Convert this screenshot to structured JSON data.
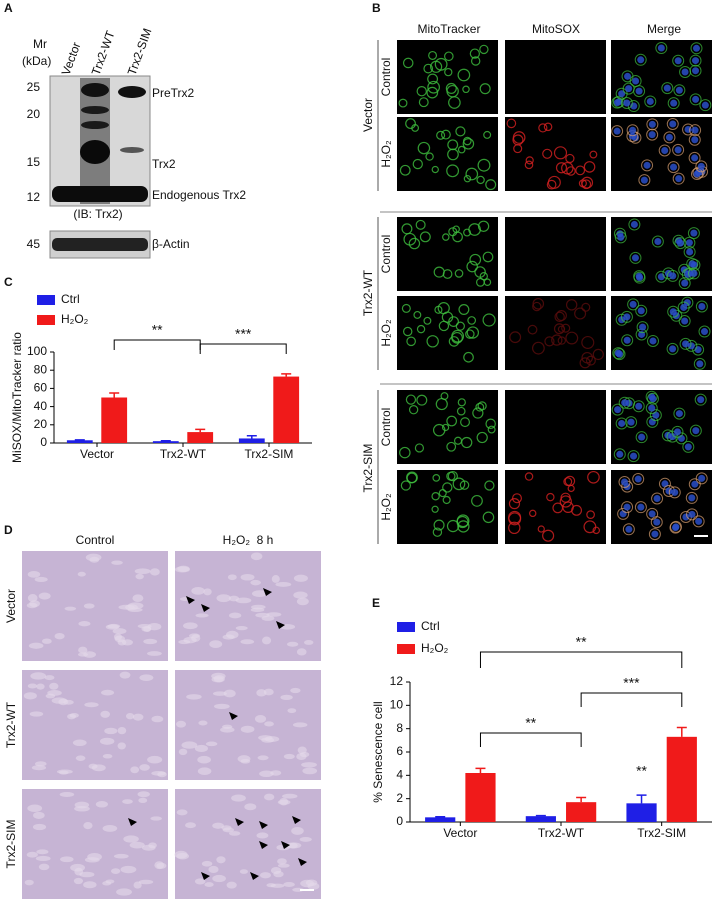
{
  "panel_a": {
    "label": "A",
    "mr": "Mr",
    "kda": "(kDa)",
    "lanes": [
      "Vector",
      "Trx2-WT",
      "Trx2-SIM"
    ],
    "markers": [
      25,
      20,
      15,
      12
    ],
    "bands": [
      "PreTrx2",
      "Trx2",
      "Endogenous Trx2"
    ],
    "ib": "(IB: Trx2)",
    "actin_marker": 45,
    "actin": "β-Actin"
  },
  "panel_b": {
    "label": "B",
    "columns": [
      "MitoTracker",
      "MitoSOX",
      "Merge"
    ],
    "groups": [
      "Vector",
      "Trx2-WT",
      "Trx2-SIM"
    ],
    "rows": [
      "Control",
      "H₂O₂"
    ]
  },
  "panel_d": {
    "label": "D",
    "columns": [
      "Control",
      "H₂O₂  8 h"
    ],
    "rows": [
      "Vector",
      "Trx2-WT",
      "Trx2-SIM"
    ]
  },
  "chart_data": [
    {
      "type": "bar",
      "panel": "C",
      "ylabel": "MiSOX/MitoTracker ratio",
      "categories": [
        "Vector",
        "Trx2-WT",
        "Trx2-SIM"
      ],
      "series": [
        {
          "name": "Ctrl",
          "color": "#1f1fe6",
          "values": [
            3,
            2,
            5
          ],
          "errors": [
            0.5,
            0.5,
            3
          ]
        },
        {
          "name": "H₂O₂",
          "color": "#f01a1a",
          "values": [
            50,
            12,
            73
          ],
          "errors": [
            5,
            3,
            3
          ]
        }
      ],
      "ylim": [
        0,
        100
      ],
      "yticks": [
        0,
        20,
        40,
        60,
        80,
        100
      ],
      "annotations": [
        "**",
        "***"
      ]
    },
    {
      "type": "bar",
      "panel": "E",
      "ylabel": "% Senescence cell",
      "categories": [
        "Vector",
        "Trx2-WT",
        "Trx2-SIM"
      ],
      "series": [
        {
          "name": "Ctrl",
          "color": "#1f1fe6",
          "values": [
            0.4,
            0.5,
            1.6
          ],
          "errors": [
            0.05,
            0.05,
            0.7
          ]
        },
        {
          "name": "H₂O₂",
          "color": "#f01a1a",
          "values": [
            4.2,
            1.7,
            7.3
          ],
          "errors": [
            0.4,
            0.4,
            0.8
          ]
        }
      ],
      "ylim": [
        0,
        12
      ],
      "yticks": [
        0,
        2,
        4,
        6,
        8,
        10,
        12
      ],
      "annotations": [
        "**",
        "***",
        "**",
        "**"
      ]
    }
  ]
}
